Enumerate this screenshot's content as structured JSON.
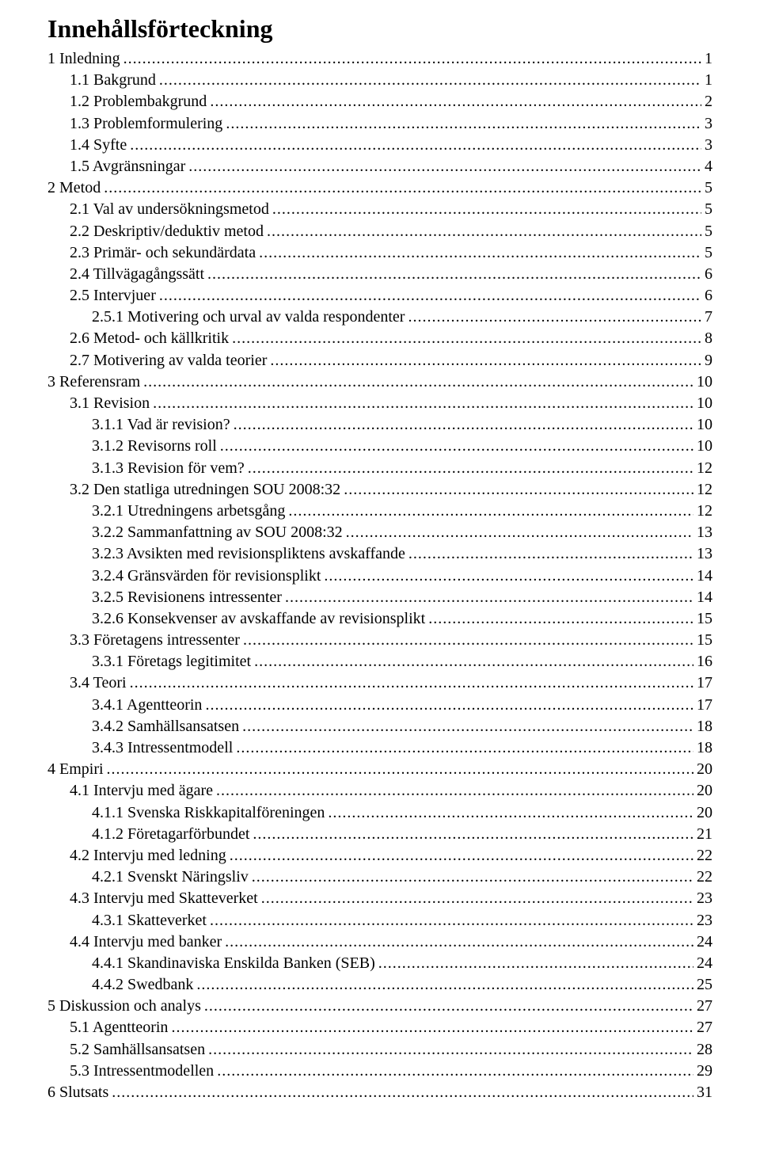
{
  "title": "Innehållsförteckning",
  "font": {
    "family": "Times New Roman",
    "title_size_pt": 24,
    "body_size_pt": 15
  },
  "colors": {
    "text": "#000000",
    "background": "#ffffff"
  },
  "entries": [
    {
      "label": "1 Inledning",
      "page": "1",
      "indent": 0
    },
    {
      "label": "1.1 Bakgrund",
      "page": "1",
      "indent": 1
    },
    {
      "label": "1.2 Problembakgrund",
      "page": "2",
      "indent": 1
    },
    {
      "label": "1.3 Problemformulering",
      "page": "3",
      "indent": 1
    },
    {
      "label": "1.4 Syfte",
      "page": "3",
      "indent": 1
    },
    {
      "label": "1.5 Avgränsningar",
      "page": "4",
      "indent": 1
    },
    {
      "label": "2 Metod",
      "page": "5",
      "indent": 0
    },
    {
      "label": "2.1 Val av undersökningsmetod",
      "page": "5",
      "indent": 1
    },
    {
      "label": "2.2 Deskriptiv/deduktiv metod",
      "page": "5",
      "indent": 1
    },
    {
      "label": "2.3 Primär- och sekundärdata",
      "page": "5",
      "indent": 1
    },
    {
      "label": "2.4 Tillvägagångssätt",
      "page": "6",
      "indent": 1
    },
    {
      "label": "2.5 Intervjuer",
      "page": "6",
      "indent": 1
    },
    {
      "label": "2.5.1 Motivering och urval av valda respondenter",
      "page": "7",
      "indent": 2
    },
    {
      "label": "2.6 Metod- och källkritik",
      "page": "8",
      "indent": 1
    },
    {
      "label": "2.7 Motivering av valda teorier",
      "page": "9",
      "indent": 1
    },
    {
      "label": "3 Referensram",
      "page": "10",
      "indent": 0
    },
    {
      "label": "3.1 Revision",
      "page": "10",
      "indent": 1
    },
    {
      "label": "3.1.1 Vad är revision?",
      "page": "10",
      "indent": 2
    },
    {
      "label": "3.1.2 Revisorns roll",
      "page": "10",
      "indent": 2
    },
    {
      "label": "3.1.3 Revision för vem?",
      "page": "12",
      "indent": 2
    },
    {
      "label": "3.2 Den statliga utredningen SOU 2008:32",
      "page": "12",
      "indent": 1
    },
    {
      "label": "3.2.1 Utredningens arbetsgång",
      "page": "12",
      "indent": 2
    },
    {
      "label": "3.2.2 Sammanfattning av SOU 2008:32",
      "page": "13",
      "indent": 2
    },
    {
      "label": "3.2.3 Avsikten med revisionspliktens avskaffande",
      "page": "13",
      "indent": 2
    },
    {
      "label": "3.2.4 Gränsvärden för revisionsplikt",
      "page": "14",
      "indent": 2
    },
    {
      "label": "3.2.5 Revisionens intressenter",
      "page": "14",
      "indent": 2
    },
    {
      "label": "3.2.6 Konsekvenser av avskaffande av revisionsplikt",
      "page": "15",
      "indent": 2
    },
    {
      "label": "3.3 Företagens intressenter",
      "page": "15",
      "indent": 1
    },
    {
      "label": "3.3.1 Företags legitimitet",
      "page": "16",
      "indent": 2
    },
    {
      "label": "3.4 Teori",
      "page": "17",
      "indent": 1
    },
    {
      "label": "3.4.1 Agentteorin",
      "page": "17",
      "indent": 2
    },
    {
      "label": "3.4.2 Samhällsansatsen",
      "page": "18",
      "indent": 2
    },
    {
      "label": "3.4.3 Intressentmodell",
      "page": "18",
      "indent": 2
    },
    {
      "label": "4 Empiri",
      "page": "20",
      "indent": 0
    },
    {
      "label": "4.1 Intervju med ägare",
      "page": "20",
      "indent": 1
    },
    {
      "label": "4.1.1 Svenska Riskkapitalföreningen",
      "page": "20",
      "indent": 2
    },
    {
      "label": "4.1.2 Företagarförbundet",
      "page": "21",
      "indent": 2
    },
    {
      "label": "4.2 Intervju med ledning",
      "page": "22",
      "indent": 1
    },
    {
      "label": "4.2.1 Svenskt Näringsliv",
      "page": "22",
      "indent": 2
    },
    {
      "label": "4.3 Intervju med Skatteverket",
      "page": "23",
      "indent": 1
    },
    {
      "label": "4.3.1 Skatteverket",
      "page": "23",
      "indent": 2
    },
    {
      "label": "4.4 Intervju med banker",
      "page": "24",
      "indent": 1
    },
    {
      "label": "4.4.1 Skandinaviska Enskilda Banken (SEB)",
      "page": "24",
      "indent": 2
    },
    {
      "label": "4.4.2 Swedbank",
      "page": "25",
      "indent": 2
    },
    {
      "label": "5 Diskussion och analys",
      "page": "27",
      "indent": 0
    },
    {
      "label": "5.1 Agentteorin",
      "page": "27",
      "indent": 1
    },
    {
      "label": "5.2 Samhällsansatsen",
      "page": "28",
      "indent": 1
    },
    {
      "label": "5.3 Intressentmodellen",
      "page": "29",
      "indent": 1
    },
    {
      "label": "6 Slutsats",
      "page": "31",
      "indent": 0
    }
  ]
}
